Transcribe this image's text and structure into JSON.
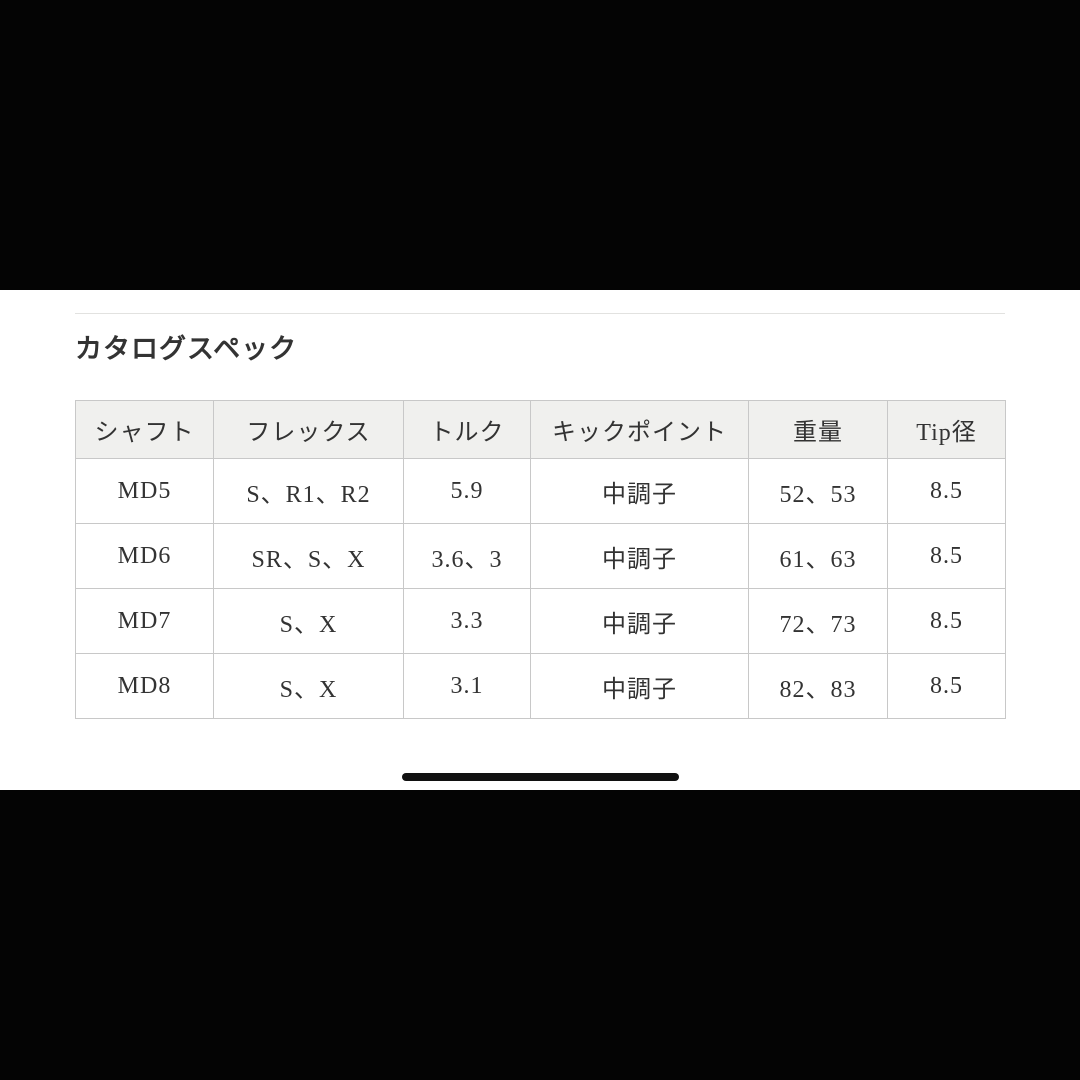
{
  "page": {
    "heading": "カタログスペック"
  },
  "table": {
    "columns": [
      "シャフト",
      "フレックス",
      "トルク",
      "キックポイント",
      "重量",
      "Tip径"
    ],
    "rows": [
      [
        "MD5",
        "S、R1、R2",
        "5.9",
        "中調子",
        "52、53",
        "8.5"
      ],
      [
        "MD6",
        "SR、S、X",
        "3.6、3",
        "中調子",
        "61、63",
        "8.5"
      ],
      [
        "MD7",
        "S、X",
        "3.3",
        "中調子",
        "72、73",
        "8.5"
      ],
      [
        "MD8",
        "S、X",
        "3.1",
        "中調子",
        "82、83",
        "8.5"
      ]
    ]
  },
  "icons": {
    "home_indicator": "rounded-horizontal-bar"
  },
  "colors": {
    "letterbox": "#040404",
    "panel_background": "#ffffff",
    "table_header_background": "#f0f0ee",
    "table_border": "#c8c8c8",
    "text": "#333333",
    "divider": "#e2e2e0",
    "home_indicator": "#111111"
  }
}
